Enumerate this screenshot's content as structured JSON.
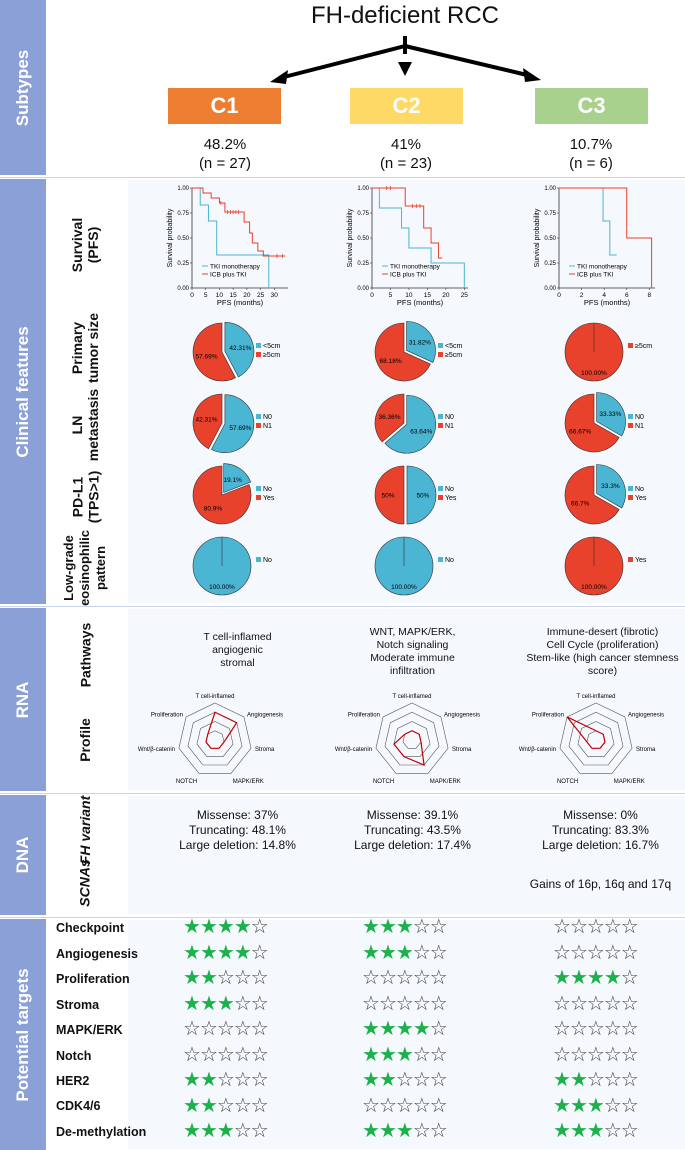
{
  "title": "FH-deficient RCC",
  "sections": {
    "subtypes": "Subtypes",
    "clinical": "Clinical features",
    "rna": "RNA",
    "dna": "DNA",
    "targets": "Potential targets"
  },
  "row_labels": {
    "survival": "Survival\n(PFS)",
    "tumor_size": "Primary\ntumor size",
    "ln": "LN\nmetastasis",
    "pdl1": "PD-L1\n(TPS>1)",
    "low_grade": "Low-grade\neosinophilic\npattern",
    "pathways": "Pathways",
    "profile": "Profile",
    "fh_variant": "FH variant",
    "scnas": "SCNAs"
  },
  "colors": {
    "c1": "#ed7d31",
    "c2": "#ffd966",
    "c3": "#a9d18e",
    "blue": "#4bb5d4",
    "red": "#e8412c",
    "star": "#1db14b"
  },
  "survival_axes": {
    "ylabel": "Survival probability",
    "xlabel": "PFS (months)",
    "yticks": [
      "1.00",
      "0.75",
      "0.50",
      "0.25",
      "0.00"
    ],
    "legend": [
      "TKI monotherapy",
      "ICB plus TKI"
    ]
  },
  "radar_axes": [
    "T cell-inflamed",
    "Angiogenesis",
    "Stroma",
    "MAPK/ERK",
    "NOTCH",
    "Wnt/β-catenin",
    "Proliferation"
  ],
  "subtypes": [
    {
      "name": "C1",
      "pct": "48.2%",
      "n": "(n = 27)",
      "km_xticks": [
        "0",
        "5",
        "10",
        "15",
        "20",
        "25",
        "30"
      ],
      "km_xmax": 35,
      "km_blue": [
        [
          0,
          1.0
        ],
        [
          3,
          1.0
        ],
        [
          3,
          0.83
        ],
        [
          6,
          0.83
        ],
        [
          6,
          0.67
        ],
        [
          9,
          0.67
        ],
        [
          9,
          0.33
        ],
        [
          28,
          0.33
        ],
        [
          28,
          0.0
        ]
      ],
      "km_red": [
        [
          0,
          1.0
        ],
        [
          4,
          1.0
        ],
        [
          4,
          0.95
        ],
        [
          7,
          0.95
        ],
        [
          7,
          0.9
        ],
        [
          10,
          0.9
        ],
        [
          10,
          0.85
        ],
        [
          12,
          0.85
        ],
        [
          12,
          0.76
        ],
        [
          19,
          0.76
        ],
        [
          19,
          0.66
        ],
        [
          21,
          0.66
        ],
        [
          21,
          0.55
        ],
        [
          22,
          0.55
        ],
        [
          22,
          0.45
        ],
        [
          24,
          0.45
        ],
        [
          24,
          0.37
        ],
        [
          26,
          0.37
        ],
        [
          26,
          0.32
        ],
        [
          34,
          0.32
        ]
      ],
      "km_red_censor": [
        10.5,
        13,
        14,
        15,
        16,
        17,
        31,
        33
      ],
      "tumor_size": {
        "slices": [
          {
            "value": 42.31,
            "color": "blue",
            "label": "42.31%"
          },
          {
            "value": 57.69,
            "color": "red",
            "label": "57.69%"
          }
        ],
        "legend": [
          "<5cm",
          "≥5cm"
        ]
      },
      "ln": {
        "slices": [
          {
            "value": 57.69,
            "color": "blue",
            "label": "57.69%"
          },
          {
            "value": 42.31,
            "color": "red",
            "label": "42.31%"
          }
        ],
        "legend": [
          "N0",
          "N1"
        ]
      },
      "pdl1": {
        "slices": [
          {
            "value": 19.1,
            "color": "blue",
            "label": "19.1%"
          },
          {
            "value": 80.9,
            "color": "red",
            "label": "80.9%"
          }
        ],
        "legend": [
          "No",
          "Yes"
        ]
      },
      "low_grade": {
        "slices": [
          {
            "value": 100,
            "color": "blue",
            "label": "100.00%"
          }
        ],
        "legend": [
          "No"
        ]
      },
      "pathways": "T cell-inflamed\nangiogenic\nstromal",
      "radar": [
        0.75,
        0.75,
        0.25,
        0.25,
        0.25,
        0.25,
        0.25
      ],
      "fh_variant": "Missense: 37%\nTruncating: 48.1%\nLarge deletion: 14.8%",
      "scnas": "",
      "targets": [
        4,
        4,
        2,
        3,
        0,
        0,
        2,
        2,
        3
      ]
    },
    {
      "name": "C2",
      "pct": "41%",
      "n": "(n = 23)",
      "km_xticks": [
        "0",
        "5",
        "10",
        "15",
        "20",
        "25"
      ],
      "km_xmax": 26,
      "km_blue": [
        [
          0,
          1.0
        ],
        [
          2,
          1.0
        ],
        [
          2,
          0.8
        ],
        [
          8,
          0.8
        ],
        [
          8,
          0.6
        ],
        [
          10,
          0.6
        ],
        [
          10,
          0.4
        ],
        [
          16,
          0.4
        ],
        [
          16,
          0.25
        ],
        [
          25,
          0.25
        ],
        [
          25,
          0.0
        ]
      ],
      "km_red": [
        [
          0,
          1.0
        ],
        [
          9,
          1.0
        ],
        [
          9,
          0.82
        ],
        [
          14,
          0.82
        ],
        [
          14,
          0.6
        ],
        [
          16,
          0.6
        ],
        [
          16,
          0.45
        ],
        [
          18,
          0.45
        ],
        [
          18,
          0.3
        ],
        [
          19,
          0.3
        ]
      ],
      "km_red_censor": [
        4,
        5,
        11,
        12,
        13
      ],
      "tumor_size": {
        "slices": [
          {
            "value": 31.82,
            "color": "blue",
            "label": "31.82%"
          },
          {
            "value": 68.18,
            "color": "red",
            "label": "68.18%"
          }
        ],
        "legend": [
          "<5cm",
          "≥5cm"
        ]
      },
      "ln": {
        "slices": [
          {
            "value": 63.64,
            "color": "blue",
            "label": "63.64%"
          },
          {
            "value": 36.36,
            "color": "red",
            "label": "36.36%"
          }
        ],
        "legend": [
          "N0",
          "N1"
        ]
      },
      "pdl1": {
        "slices": [
          {
            "value": 50,
            "color": "blue",
            "label": "50%"
          },
          {
            "value": 50,
            "color": "red",
            "label": "50%"
          }
        ],
        "legend": [
          "No",
          "Yes"
        ]
      },
      "low_grade": {
        "slices": [
          {
            "value": 100,
            "color": "blue",
            "label": "100.00%"
          }
        ],
        "legend": [
          "No"
        ]
      },
      "pathways": "WNT, MAPK/ERK,\nNotch signaling\nModerate immune\ninfiltration",
      "radar": [
        0.25,
        0.25,
        0.25,
        0.75,
        0.5,
        0.5,
        0.25
      ],
      "fh_variant": "Missense: 39.1%\nTruncating: 43.5%\nLarge deletion: 17.4%",
      "scnas": "",
      "targets": [
        3,
        3,
        0,
        0,
        4,
        3,
        2,
        0,
        3
      ]
    },
    {
      "name": "C3",
      "pct": "10.7%",
      "n": "(n = 6)",
      "km_xticks": [
        "0",
        "2",
        "4",
        "6",
        "8"
      ],
      "km_xmax": 8.5,
      "km_blue": [
        [
          0,
          1.0
        ],
        [
          3.9,
          1.0
        ],
        [
          3.9,
          0.67
        ],
        [
          4.5,
          0.67
        ],
        [
          4.5,
          0.33
        ],
        [
          5.1,
          0.33
        ]
      ],
      "km_red": [
        [
          0,
          1.0
        ],
        [
          6,
          1.0
        ],
        [
          6,
          0.5
        ],
        [
          8.2,
          0.5
        ],
        [
          8.2,
          0.0
        ]
      ],
      "km_red_censor": [],
      "tumor_size": {
        "slices": [
          {
            "value": 100,
            "color": "red",
            "label": "100.00%"
          }
        ],
        "legend": [
          "≥5cm"
        ]
      },
      "ln": {
        "slices": [
          {
            "value": 33.33,
            "color": "blue",
            "label": "33.33%"
          },
          {
            "value": 66.67,
            "color": "red",
            "label": "66.67%"
          }
        ],
        "legend": [
          "N0",
          "N1"
        ]
      },
      "pdl1": {
        "slices": [
          {
            "value": 33.3,
            "color": "blue",
            "label": "33.3%"
          },
          {
            "value": 66.7,
            "color": "red",
            "label": "66.7%"
          }
        ],
        "legend": [
          "No",
          "Yes"
        ]
      },
      "low_grade": {
        "slices": [
          {
            "value": 100,
            "color": "red",
            "label": "100.00%"
          }
        ],
        "legend": [
          "Yes"
        ]
      },
      "pathways": "Immune-desert (fibrotic)\nCell Cycle (proliferation)\nStem-like (high cancer stemness\nscore)",
      "radar": [
        0.25,
        0.25,
        0.25,
        0.25,
        0.25,
        0.25,
        1.0
      ],
      "fh_variant": "Missense: 0%\nTruncating: 83.3%\nLarge deletion: 16.7%",
      "scnas": "Gains of 16p, 16q and 17q",
      "targets": [
        0,
        0,
        4,
        0,
        0,
        0,
        2,
        3,
        3
      ]
    }
  ],
  "targets": [
    "Checkpoint",
    "Angiogenesis",
    "Proliferation",
    "Stroma",
    "MAPK/ERK",
    "Notch",
    "HER2",
    "CDK4/6",
    "De-methylation"
  ]
}
